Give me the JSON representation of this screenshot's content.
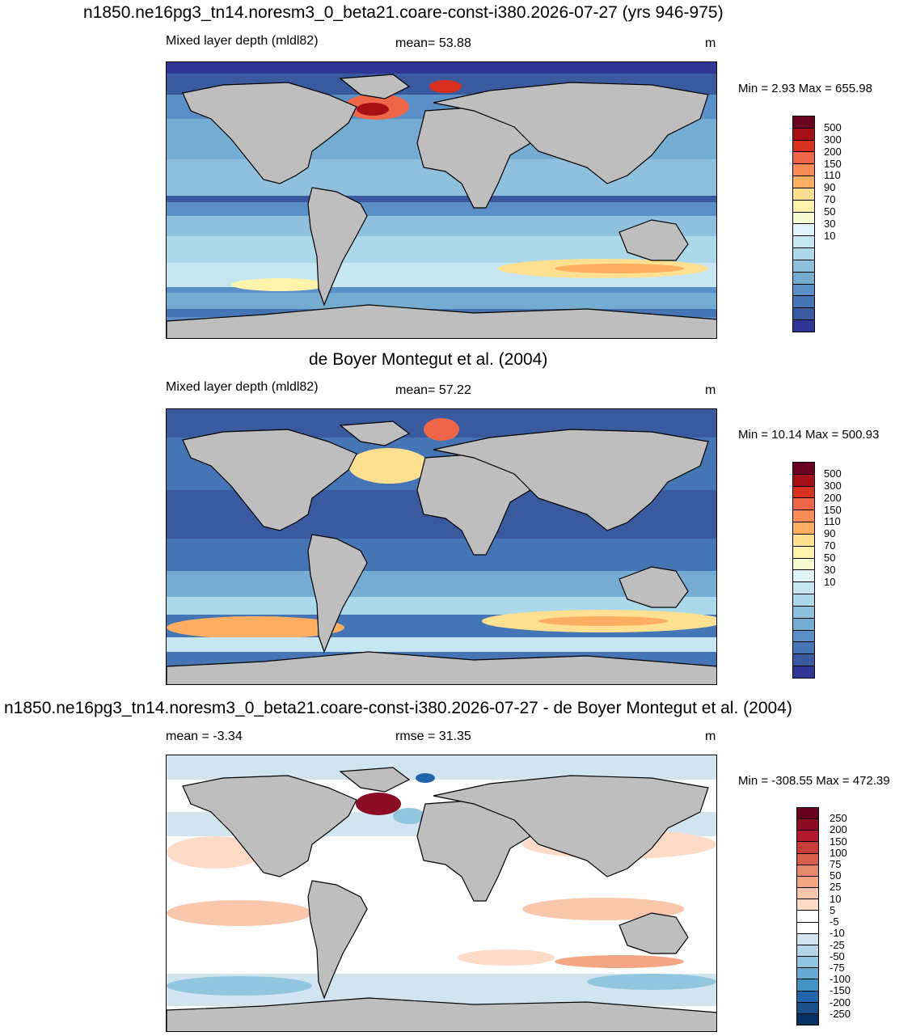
{
  "panel1": {
    "title": "n1850.ne16pg3_tn14.noresm3_0_beta21.coare-const-i380.2026-07-27 (yrs 946-975)",
    "left_label": "Mixed layer depth (mldl82)",
    "center_label": "mean=  53.88",
    "units": "m",
    "minmax": "Min =   2.93 Max = 655.98",
    "colorbar_labels": [
      "500",
      "300",
      "200",
      "150",
      "110",
      "90",
      "70",
      "50",
      "30",
      "10"
    ]
  },
  "panel2": {
    "title": "de Boyer Montegut et al. (2004)",
    "left_label": "Mixed layer depth (mldl82)",
    "center_label": "mean=  57.22",
    "units": "m",
    "minmax": "Min =  10.14 Max = 500.93",
    "colorbar_labels": [
      "500",
      "300",
      "200",
      "150",
      "110",
      "90",
      "70",
      "50",
      "30",
      "10"
    ]
  },
  "panel3": {
    "title": "n1850.ne16pg3_tn14.noresm3_0_beta21.coare-const-i380.2026-07-27 - de Boyer Montegut et al. (2004)",
    "left_label": "mean =  -3.34",
    "center_label": "rmse =  31.35",
    "units": "m",
    "minmax": "Min = -308.55 Max = 472.39",
    "colorbar_labels": [
      "250",
      "200",
      "150",
      "100",
      "75",
      "50",
      "25",
      "10",
      "5",
      "-5",
      "-10",
      "-25",
      "-50",
      "-75",
      "-100",
      "-150",
      "-200",
      "-250"
    ]
  },
  "colors": {
    "mld_scale": [
      "#6a0120",
      "#a50f15",
      "#d7301f",
      "#ef6548",
      "#fc8d59",
      "#fdae61",
      "#fee090",
      "#fff2aa",
      "#f7fcd0",
      "#e0f3f8",
      "#c6e6f2",
      "#abd9e9",
      "#8fc1de",
      "#74add1",
      "#5b8fc7",
      "#4575b4",
      "#3a5aa0",
      "#313695"
    ],
    "diff_scale": [
      "#67001f",
      "#8b0d24",
      "#b2182b",
      "#c63d3c",
      "#d6604d",
      "#e58a6e",
      "#f4a582",
      "#f9c7ab",
      "#fddbc7",
      "#ffffff",
      "#ffffff",
      "#d1e5f0",
      "#b5d5ea",
      "#92c5de",
      "#6aa9d0",
      "#4393c3",
      "#2166ac",
      "#1a4f8a",
      "#053061"
    ],
    "land": "#bebebe",
    "coast": "#000000"
  }
}
